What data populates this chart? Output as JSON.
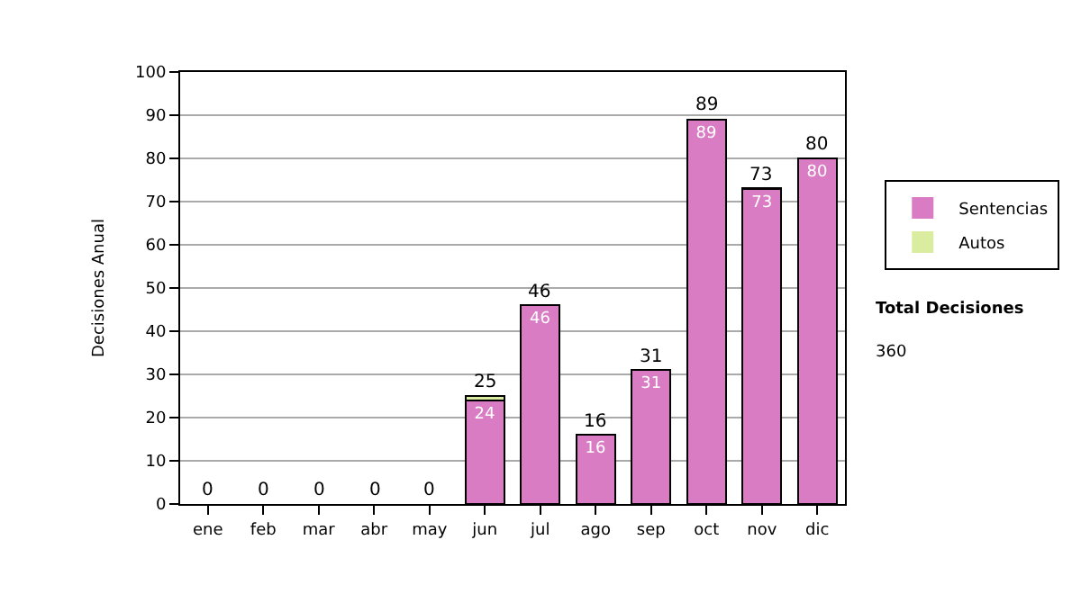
{
  "chart_data": {
    "type": "bar",
    "stacked": true,
    "ylabel": "Decisiones Anual",
    "categories": [
      "ene",
      "feb",
      "mar",
      "abr",
      "may",
      "jun",
      "jul",
      "ago",
      "sep",
      "oct",
      "nov",
      "dic"
    ],
    "series": [
      {
        "name": "Sentencias",
        "color": "#d97cc4",
        "values": [
          0,
          0,
          0,
          0,
          0,
          24,
          46,
          16,
          31,
          89,
          73,
          80
        ],
        "value_labels": [
          null,
          null,
          null,
          null,
          null,
          "24",
          "46",
          "16",
          "31",
          "89",
          "73",
          "80"
        ]
      },
      {
        "name": "Autos",
        "color": "#d9eca0",
        "values": [
          0,
          0,
          0,
          0,
          0,
          1,
          0,
          0,
          0,
          0,
          0,
          0
        ]
      }
    ],
    "totals": [
      "0",
      "0",
      "0",
      "0",
      "0",
      "25",
      "46",
      "16",
      "31",
      "89",
      "73",
      "80"
    ],
    "ylim": [
      0,
      100
    ],
    "yticks": [
      0,
      10,
      20,
      30,
      40,
      50,
      60,
      70,
      80,
      90,
      100
    ],
    "grid": "y",
    "legend": "right",
    "annotations": [
      "Total Decisiones",
      "360"
    ]
  }
}
